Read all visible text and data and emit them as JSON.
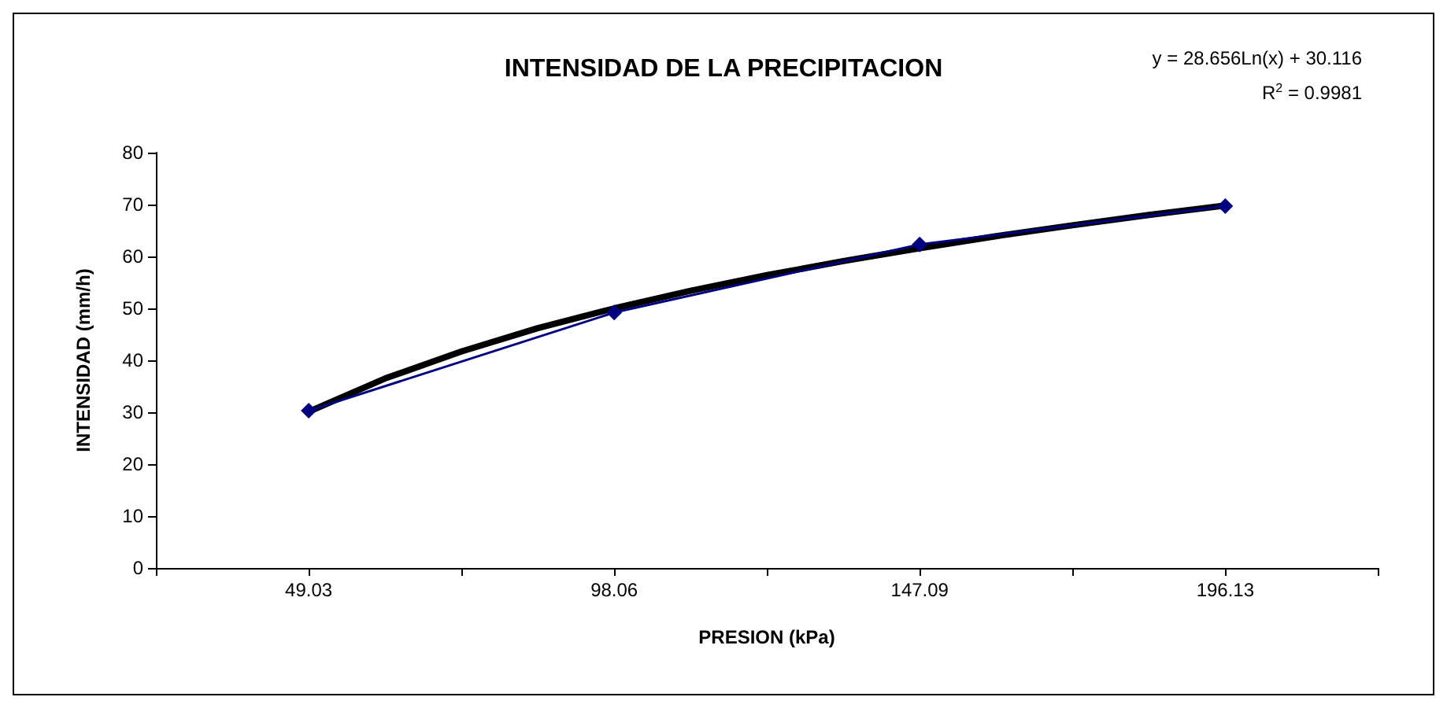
{
  "chart_data": {
    "type": "line",
    "title": "INTENSIDAD DE LA PRECIPITACION",
    "xlabel": "PRESION (kPa)",
    "ylabel": "INTENSIDAD (mm/h)",
    "annotations": [
      "y = 28.656Ln(x) + 30.116",
      "R$^{2}$ = 0.9981"
    ],
    "x": [
      49.03,
      98.06,
      147.09,
      196.13
    ],
    "series": [
      {
        "color": "#000080",
        "marker": "diamond",
        "values": [
          30.3,
          49.2,
          62.3,
          69.7
        ]
      },
      {
        "color": "#000000",
        "marker": "none",
        "x": [
          49.03,
          61.29,
          73.55,
          85.8,
          98.06,
          110.32,
          122.58,
          134.83,
          147.09,
          159.35,
          171.61,
          183.86,
          196.13
        ],
        "values": [
          30.1,
          36.5,
          41.7,
          46.2,
          50.0,
          53.4,
          56.4,
          59.1,
          61.6,
          63.9,
          66.0,
          68.0,
          69.8
        ]
      }
    ],
    "xlim": [
      24.5,
      220.6
    ],
    "xticks": [
      {
        "value": 24.5,
        "label": null
      },
      49.03,
      {
        "value": 73.5,
        "label": null
      },
      98.06,
      {
        "value": 122.6,
        "label": null
      },
      147.09,
      {
        "value": 171.6,
        "label": null
      },
      196.13,
      {
        "value": 220.6,
        "label": null
      }
    ],
    "ylim": [
      0,
      80
    ],
    "yticks": [
      0,
      10,
      20,
      30,
      40,
      50,
      60,
      70,
      80
    ],
    "grid": false
  }
}
